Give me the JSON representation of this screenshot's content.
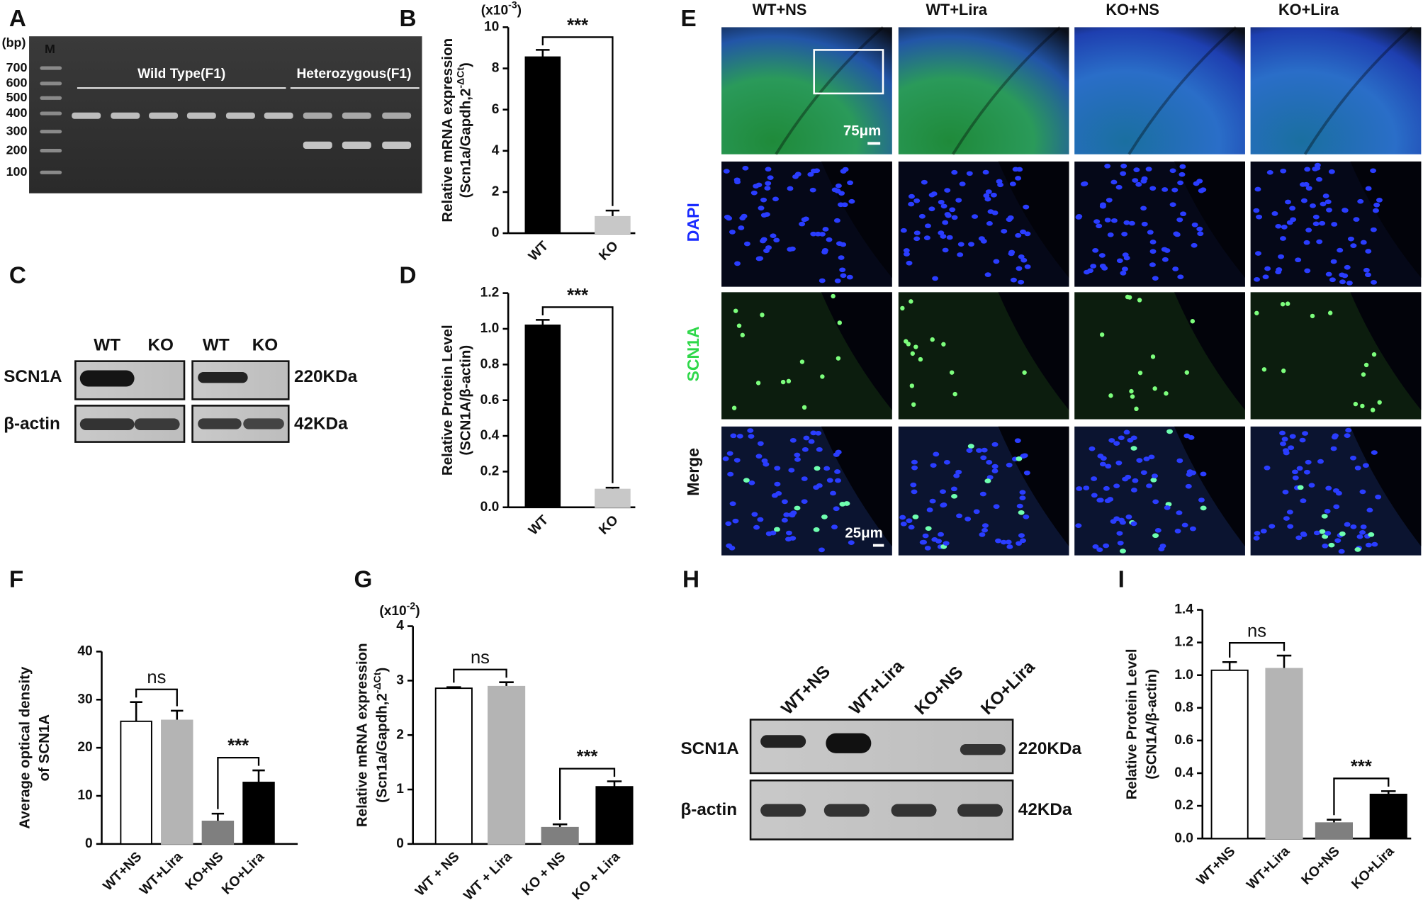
{
  "panel_labels": [
    "A",
    "B",
    "C",
    "D",
    "E",
    "F",
    "G",
    "H",
    "I"
  ],
  "gel": {
    "unit": "(bp)",
    "marker": "M",
    "sizes": [
      700,
      600,
      500,
      400,
      300,
      200,
      100
    ],
    "groups": [
      "Wild Type(F1)",
      "Heterozygous(F1)"
    ]
  },
  "blot_c": {
    "lanes": [
      "WT",
      "KO",
      "WT",
      "KO"
    ],
    "rows": [
      "SCN1A",
      "β-actin"
    ],
    "sizes": [
      "220KDa",
      "42KDa"
    ]
  },
  "imaging": {
    "columns": [
      "WT+NS",
      "WT+Lira",
      "KO+NS",
      "KO+Lira"
    ],
    "rows": [
      "DAPI",
      "SCN1A",
      "Merge"
    ],
    "scale_bars": [
      "75μm",
      "25μm"
    ]
  },
  "blot_h": {
    "lanes": [
      "WT+NS",
      "WT+Lira",
      "KO+NS",
      "KO+Lira"
    ],
    "rows": [
      "SCN1A",
      "β-actin"
    ],
    "sizes": [
      "220KDa",
      "42KDa"
    ]
  },
  "chart_data": [
    {
      "type": "bar",
      "y_multiplier": [
        "(x10",
        "-3",
        ")"
      ],
      "y_label": [
        "Relative mRNA expression",
        [
          "(Scn1a/Gapdh,2",
          "-ΔCt",
          ")"
        ]
      ],
      "categories": [
        "WT",
        "KO"
      ],
      "values": [
        8.55,
        0.8
      ],
      "errors": [
        0.35,
        0.3
      ],
      "colors": [
        "#000000",
        "#c8c8c8"
      ],
      "ylim": [
        0,
        10
      ],
      "yticks": [
        0,
        2,
        4,
        6,
        8,
        10
      ],
      "significance": [
        {
          "pair": [
            0,
            1
          ],
          "label": "***"
        }
      ]
    },
    {
      "type": "bar",
      "y_label": [
        "Relative Protein Level",
        [
          "(SCN1A/β-actin)"
        ]
      ],
      "categories": [
        "WT",
        "KO"
      ],
      "values": [
        1.02,
        0.1
      ],
      "errors": [
        0.03,
        0.01
      ],
      "colors": [
        "#000000",
        "#c8c8c8"
      ],
      "ylim": [
        0,
        1.2
      ],
      "yticks": [
        {
          "value": 0,
          "label": "0.0"
        },
        0.2,
        0.4,
        0.6,
        0.8,
        {
          "value": 1,
          "label": "1.0"
        },
        1.2
      ],
      "significance": [
        {
          "pair": [
            0,
            1
          ],
          "label": "***"
        }
      ]
    },
    {
      "type": "bar",
      "y_label": [
        "Average optical density",
        [
          "of SCN1A"
        ]
      ],
      "categories": [
        "WT+NS",
        "WT+Lira",
        "KO+NS",
        "KO+Lira"
      ],
      "values": [
        25.5,
        25.7,
        4.7,
        12.8
      ],
      "errors": [
        4.0,
        2.0,
        1.6,
        2.5
      ],
      "colors": [
        "#ffffff",
        "#b4b4b4",
        "#7f7f7f",
        "#000000"
      ],
      "ylim": [
        0,
        40
      ],
      "yticks": [
        0,
        10,
        20,
        30,
        40
      ],
      "significance": [
        {
          "pair": [
            0,
            1
          ],
          "label": "ns"
        },
        {
          "pair": [
            2,
            3
          ],
          "label": "***"
        }
      ]
    },
    {
      "type": "bar",
      "y_multiplier": [
        "(x10",
        "-2",
        ")"
      ],
      "y_label": [
        "Relative mRNA expression",
        [
          "(Scn1a/Gapdh,2",
          "-ΔCt",
          ")"
        ]
      ],
      "categories": [
        "WT + NS",
        "WT + Lira",
        "KO + NS",
        "KO + Lira"
      ],
      "values": [
        2.86,
        2.89,
        0.3,
        1.05
      ],
      "errors": [
        0.02,
        0.08,
        0.06,
        0.1
      ],
      "colors": [
        "#ffffff",
        "#b4b4b4",
        "#7f7f7f",
        "#000000"
      ],
      "ylim": [
        0,
        4
      ],
      "yticks": [
        0,
        1,
        2,
        3,
        4
      ],
      "significance": [
        {
          "pair": [
            0,
            1
          ],
          "label": "ns"
        },
        {
          "pair": [
            2,
            3
          ],
          "label": "***"
        }
      ]
    },
    {
      "type": "bar",
      "y_label": [
        "Relative Protein Level",
        [
          "(SCN1A/β-actin)"
        ]
      ],
      "categories": [
        "WT+NS",
        "WT+Lira",
        "KO+NS",
        "KO+Lira"
      ],
      "values": [
        1.03,
        1.04,
        0.095,
        0.27
      ],
      "errors": [
        0.05,
        0.08,
        0.02,
        0.02
      ],
      "colors": [
        "#ffffff",
        "#b4b4b4",
        "#7f7f7f",
        "#000000"
      ],
      "ylim": [
        0,
        1.4
      ],
      "yticks": [
        {
          "value": 0,
          "label": "0.0"
        },
        0.2,
        0.4,
        0.6,
        0.8,
        {
          "value": 1,
          "label": "1.0"
        },
        1.2,
        1.4
      ],
      "significance": [
        {
          "pair": [
            0,
            1
          ],
          "label": "ns"
        },
        {
          "pair": [
            2,
            3
          ],
          "label": "***"
        }
      ]
    }
  ]
}
